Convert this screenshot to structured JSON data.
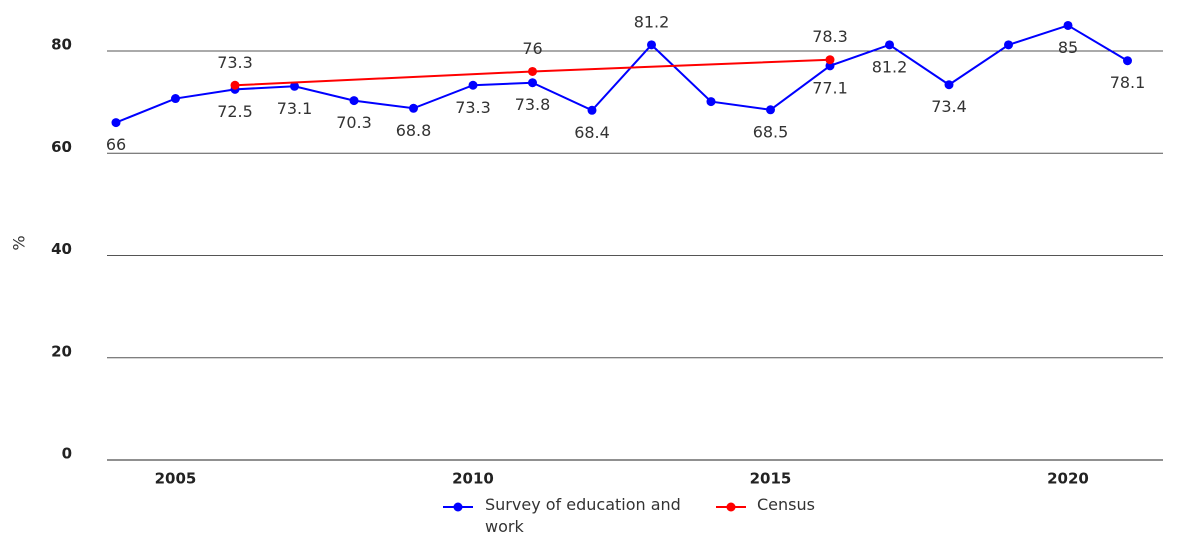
{
  "chart_data": {
    "type": "line",
    "y_label": "%",
    "categories": [
      null,
      "2005",
      null,
      null,
      null,
      null,
      "2010",
      null,
      null,
      null,
      null,
      "2015",
      null,
      null,
      null,
      null,
      "2020",
      null
    ],
    "series": [
      {
        "name": "Survey of education and work",
        "color": "#0000ff",
        "values": [
          66,
          70.7,
          72.5,
          73.1,
          70.3,
          68.8,
          73.3,
          73.8,
          68.4,
          81.2,
          70.1,
          68.5,
          77.1,
          81.2,
          73.4,
          81.2,
          85,
          78.1
        ],
        "value_labels": [
          "66",
          null,
          "72.5",
          "73.1",
          "70.3",
          "68.8",
          "73.3",
          "73.8",
          "68.4",
          "81.2",
          null,
          "68.5",
          "77.1",
          "81.2",
          "73.4",
          null,
          "85",
          "78.1"
        ]
      },
      {
        "name": "Census",
        "color": "#ff0000",
        "connect_gaps": true,
        "values": [
          null,
          null,
          73.3,
          null,
          null,
          null,
          null,
          76,
          null,
          null,
          null,
          null,
          78.3,
          null,
          null,
          null,
          null,
          null
        ]
      }
    ],
    "ylim": [
      0,
      80
    ],
    "yticks": [
      0,
      20,
      40,
      60,
      80
    ],
    "grid": true
  }
}
